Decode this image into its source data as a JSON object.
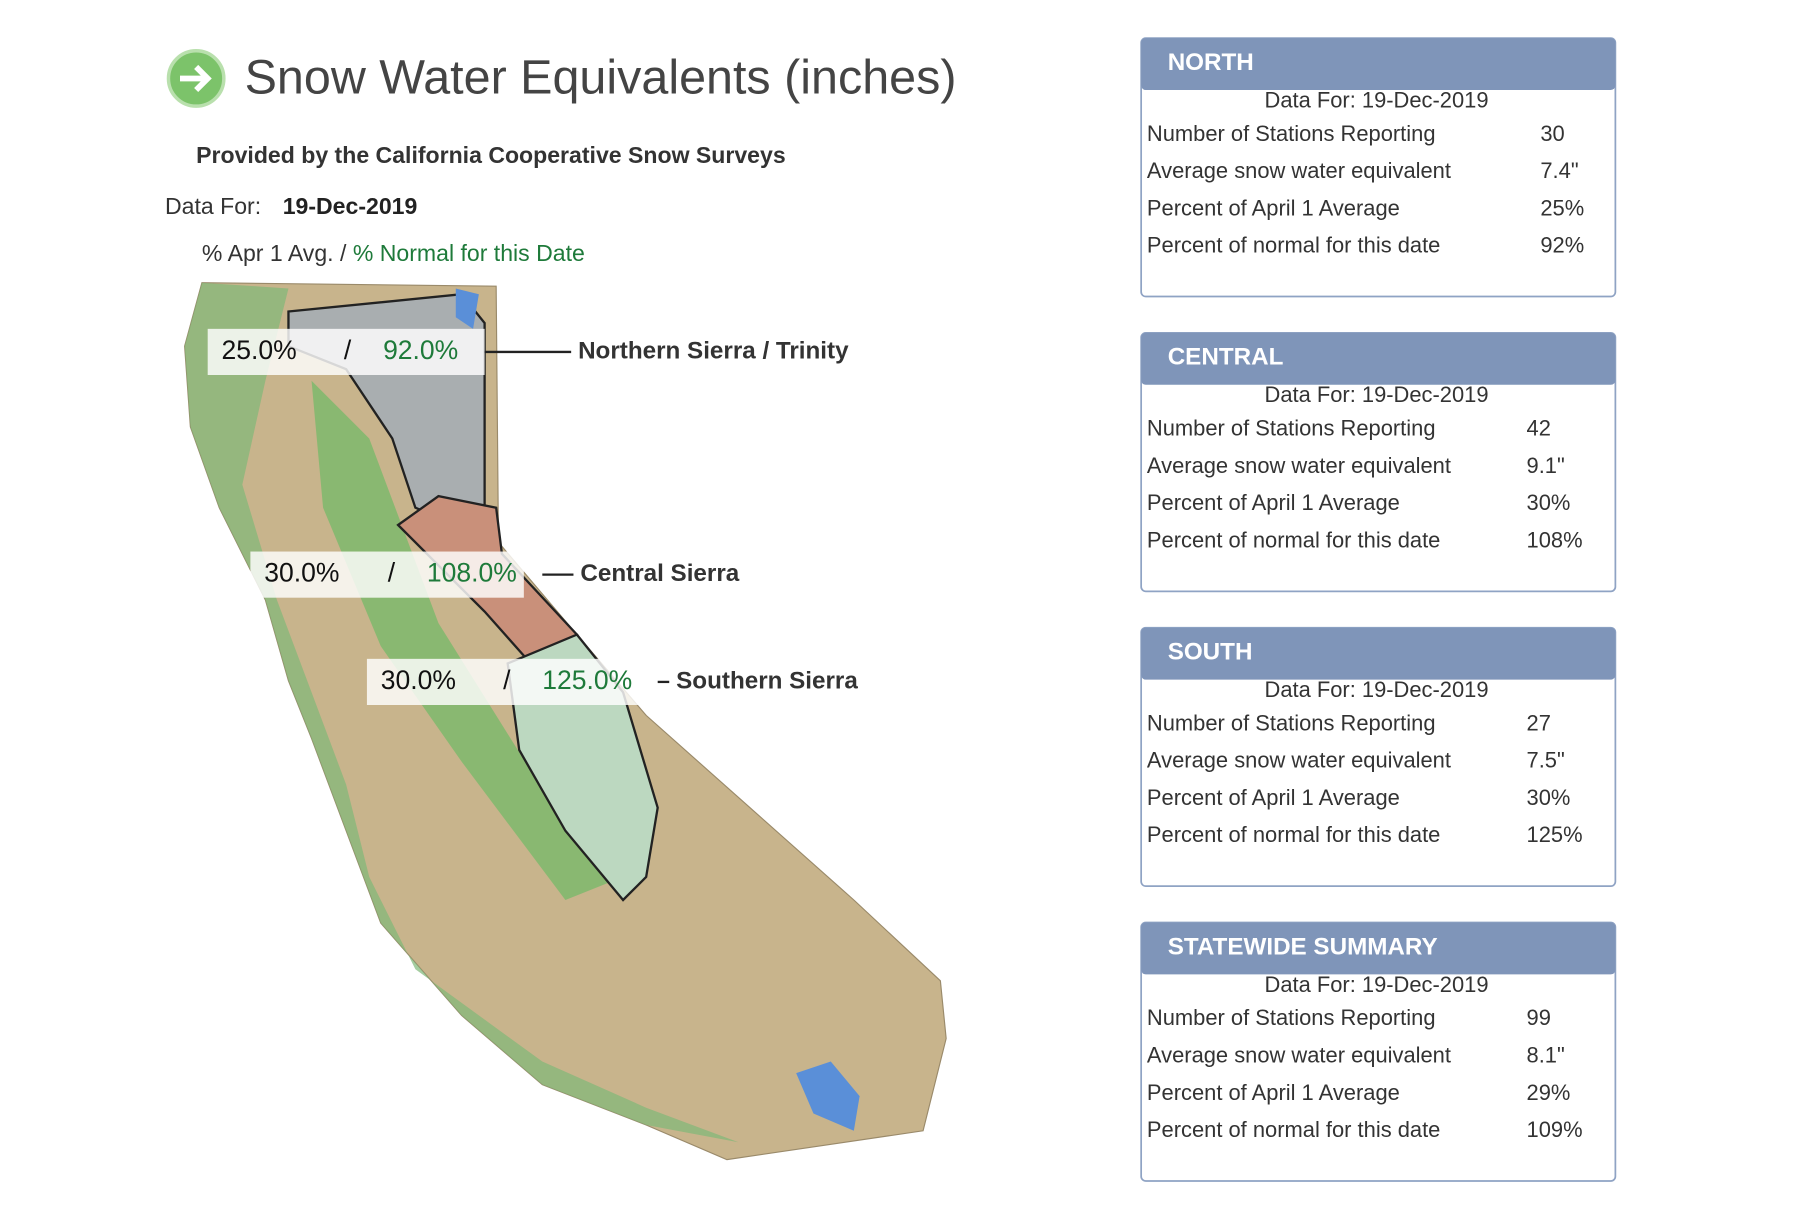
{
  "header": {
    "title": "Snow Water Equivalents (inches)",
    "provider": "Provided by the California Cooperative Snow Surveys",
    "data_for_label": "Data For:",
    "data_for_date": "19-Dec-2019",
    "legend": {
      "apr": "% Apr 1 Avg.",
      "separator": "/",
      "normal": "% Normal for this Date"
    }
  },
  "map": {
    "regions": [
      {
        "apr": "25.0%",
        "separator": "/",
        "normal": "92.0%",
        "name": "Northern Sierra / Trinity"
      },
      {
        "apr": "30.0%",
        "separator": "/",
        "normal": "108.0%",
        "name": "Central Sierra"
      },
      {
        "apr": "30.0%",
        "separator": "/",
        "normal": "125.0%",
        "name": "Southern Sierra"
      }
    ]
  },
  "panels": [
    {
      "title": "NORTH",
      "data_for": "Data For: 19-Dec-2019",
      "rows": [
        [
          "Number of Stations Reporting",
          "30"
        ],
        [
          "Average snow water equivalent",
          "7.4\""
        ],
        [
          "Percent of April 1 Average",
          "25%"
        ],
        [
          "Percent of normal for this date",
          "92%"
        ]
      ]
    },
    {
      "title": "CENTRAL",
      "data_for": "Data For: 19-Dec-2019",
      "rows": [
        [
          "Number of Stations Reporting",
          "42"
        ],
        [
          "Average snow water equivalent",
          "9.1\""
        ],
        [
          "Percent of April 1 Average",
          "30%"
        ],
        [
          "Percent of normal for this date",
          "108%"
        ]
      ]
    },
    {
      "title": "SOUTH",
      "data_for": "Data For: 19-Dec-2019",
      "rows": [
        [
          "Number of Stations Reporting",
          "27"
        ],
        [
          "Average snow water equivalent",
          "7.5\""
        ],
        [
          "Percent of April 1 Average",
          "30%"
        ],
        [
          "Percent of normal for this date",
          "125%"
        ]
      ]
    },
    {
      "title": "STATEWIDE SUMMARY",
      "data_for": "Data For: 19-Dec-2019",
      "rows": [
        [
          "Number of Stations Reporting",
          "99"
        ],
        [
          "Average snow water equivalent",
          "8.1\""
        ],
        [
          "Percent of April 1 Average",
          "29%"
        ],
        [
          "Percent of normal for this date",
          "109%"
        ]
      ]
    }
  ]
}
